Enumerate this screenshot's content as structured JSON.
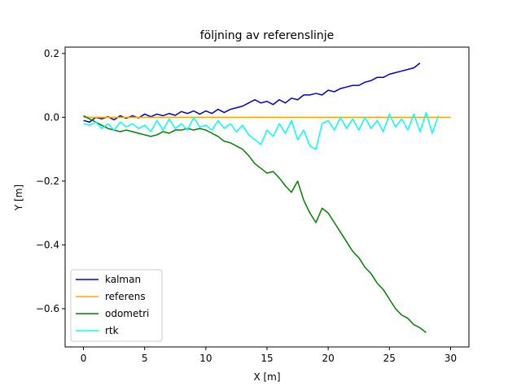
{
  "chart_data": {
    "type": "line",
    "title": "följning av referenslinje",
    "xlabel": "X [m]",
    "ylabel": "Y [m]",
    "xlim": [
      -1.5,
      31.5
    ],
    "ylim": [
      -0.72,
      0.22
    ],
    "xticks": [
      0,
      5,
      10,
      15,
      20,
      25,
      30
    ],
    "xtick_labels": [
      "0",
      "5",
      "10",
      "15",
      "20",
      "25",
      "30"
    ],
    "yticks": [
      0.2,
      0.0,
      -0.2,
      -0.4,
      -0.6
    ],
    "ytick_labels": [
      "0.2",
      "0.0",
      "−0.2",
      "−0.4",
      "−0.6"
    ],
    "grid": false,
    "legend_position": "lower-left",
    "series": [
      {
        "name": "kalman",
        "color": "#0000cd",
        "x": [
          0,
          0.5,
          1,
          1.5,
          2,
          2.5,
          3,
          3.5,
          4,
          4.5,
          5,
          5.5,
          6,
          6.5,
          7,
          7.5,
          8,
          8.5,
          9,
          9.5,
          10,
          10.5,
          11,
          11.5,
          12,
          12.5,
          13,
          13.5,
          14,
          14.5,
          15,
          15.5,
          16,
          16.5,
          17,
          17.5,
          18,
          18.5,
          19,
          19.5,
          20,
          20.5,
          21,
          21.5,
          22,
          22.5,
          23,
          23.5,
          24,
          24.5,
          25,
          25.5,
          26,
          26.5,
          27,
          27.5
        ],
        "y": [
          -0.01,
          -0.015,
          0.0,
          -0.005,
          0.002,
          -0.008,
          0.005,
          -0.003,
          0.005,
          -0.002,
          0.01,
          0.002,
          0.01,
          0.005,
          0.012,
          0.006,
          0.018,
          0.012,
          0.02,
          0.01,
          0.02,
          0.012,
          0.025,
          0.015,
          0.025,
          0.03,
          0.035,
          0.045,
          0.055,
          0.045,
          0.05,
          0.04,
          0.055,
          0.045,
          0.06,
          0.055,
          0.07,
          0.07,
          0.075,
          0.07,
          0.085,
          0.08,
          0.09,
          0.095,
          0.1,
          0.1,
          0.11,
          0.115,
          0.125,
          0.125,
          0.135,
          0.14,
          0.145,
          0.15,
          0.155,
          0.17
        ]
      },
      {
        "name": "referens",
        "color": "#ffa500",
        "x": [
          0,
          30
        ],
        "y": [
          0.0,
          0.0
        ]
      },
      {
        "name": "odometri",
        "color": "#008000",
        "x": [
          0,
          0.5,
          1,
          1.5,
          2,
          2.5,
          3,
          3.5,
          4,
          4.5,
          5,
          5.5,
          6,
          6.5,
          7,
          7.5,
          8,
          8.5,
          9,
          9.5,
          10,
          10.5,
          11,
          11.5,
          12,
          12.5,
          13,
          13.5,
          14,
          14.5,
          15,
          15.5,
          16,
          16.5,
          17,
          17.5,
          18,
          18.5,
          19,
          19.5,
          20,
          20.5,
          21,
          21.5,
          22,
          22.5,
          23,
          23.5,
          24,
          24.5,
          25,
          25.5,
          26,
          26.5,
          27,
          27.5,
          28
        ],
        "y": [
          0.005,
          -0.005,
          -0.015,
          -0.025,
          -0.035,
          -0.04,
          -0.045,
          -0.04,
          -0.045,
          -0.05,
          -0.055,
          -0.06,
          -0.055,
          -0.045,
          -0.05,
          -0.04,
          -0.04,
          -0.035,
          -0.04,
          -0.035,
          -0.04,
          -0.05,
          -0.06,
          -0.075,
          -0.08,
          -0.09,
          -0.1,
          -0.12,
          -0.145,
          -0.16,
          -0.175,
          -0.17,
          -0.19,
          -0.215,
          -0.235,
          -0.2,
          -0.26,
          -0.3,
          -0.33,
          -0.285,
          -0.3,
          -0.33,
          -0.36,
          -0.39,
          -0.42,
          -0.44,
          -0.47,
          -0.49,
          -0.52,
          -0.54,
          -0.57,
          -0.6,
          -0.62,
          -0.63,
          -0.65,
          -0.66,
          -0.675
        ]
      },
      {
        "name": "rtk",
        "color": "#00ffff",
        "x": [
          0,
          0.5,
          1,
          1.5,
          2,
          2.5,
          3,
          3.5,
          4,
          4.5,
          5,
          5.5,
          6,
          6.5,
          7,
          7.5,
          8,
          8.5,
          9,
          9.5,
          10,
          10.5,
          11,
          11.5,
          12,
          12.5,
          13,
          13.5,
          14,
          14.5,
          15,
          15.5,
          16,
          16.5,
          17,
          17.5,
          18,
          18.5,
          19,
          19.5,
          20,
          20.5,
          21,
          21.5,
          22,
          22.5,
          23,
          23.5,
          24,
          24.5,
          25,
          25.5,
          26,
          26.5,
          27,
          27.5,
          28,
          28.5,
          29
        ],
        "y": [
          -0.02,
          -0.025,
          -0.015,
          -0.035,
          -0.02,
          -0.04,
          -0.015,
          -0.03,
          -0.02,
          -0.035,
          -0.025,
          -0.045,
          -0.01,
          -0.04,
          -0.005,
          -0.035,
          -0.02,
          -0.04,
          0.0,
          -0.03,
          -0.025,
          -0.04,
          -0.01,
          -0.035,
          -0.02,
          -0.045,
          -0.025,
          -0.055,
          -0.07,
          -0.085,
          -0.04,
          -0.06,
          -0.02,
          -0.05,
          -0.01,
          -0.07,
          -0.04,
          -0.09,
          -0.1,
          -0.02,
          -0.01,
          -0.04,
          0.0,
          -0.035,
          -0.005,
          -0.04,
          0.0,
          -0.035,
          -0.01,
          -0.045,
          0.01,
          -0.03,
          -0.005,
          -0.04,
          0.01,
          -0.045,
          0.015,
          -0.05,
          0.005
        ]
      }
    ]
  }
}
